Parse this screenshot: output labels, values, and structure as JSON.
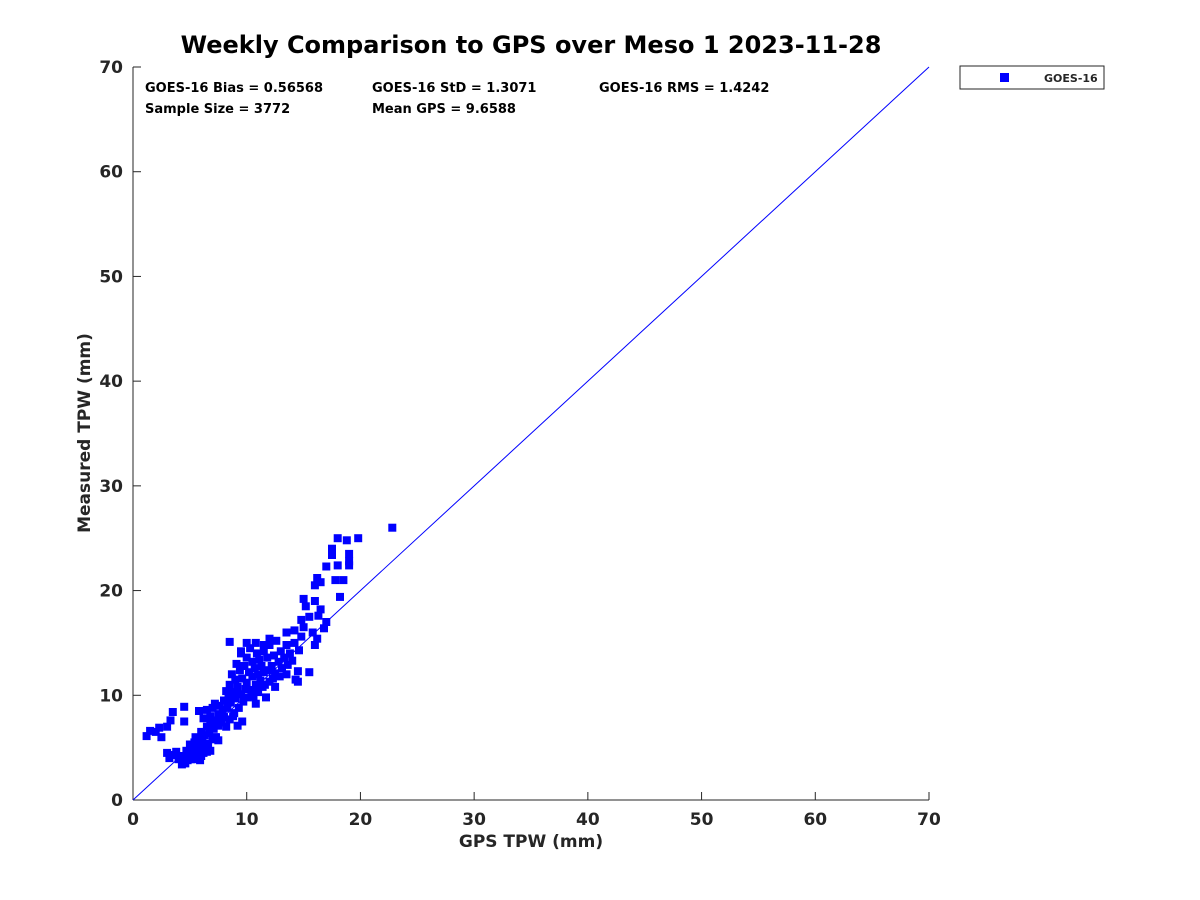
{
  "chart_data": {
    "type": "scatter",
    "title": "Weekly Comparison to GPS over Meso 1 2023-11-28",
    "xlabel": "GPS TPW (mm)",
    "ylabel": "Measured TPW (mm)",
    "xlim": [
      0,
      70
    ],
    "ylim": [
      0,
      70
    ],
    "xticks": [
      "0",
      "10",
      "20",
      "30",
      "40",
      "50",
      "60",
      "70"
    ],
    "yticks": [
      "0",
      "10",
      "20",
      "30",
      "40",
      "50",
      "60",
      "70"
    ],
    "grid": false,
    "legend_position": "outside-top-right",
    "one_to_one_line": {
      "x": [
        0,
        70
      ],
      "y": [
        0,
        70
      ],
      "color": "#0000ff"
    },
    "stats": {
      "bias": "GOES-16 Bias = 0.56568",
      "std": "GOES-16 StD = 1.3071",
      "rms": "GOES-16 RMS = 1.4242",
      "sample": "Sample Size = 3772",
      "mean": "Mean GPS = 9.6588"
    },
    "series": [
      {
        "name": "GOES-16",
        "color": "#0000ff",
        "marker": "square",
        "points": [
          [
            1.2,
            6.1
          ],
          [
            1.5,
            6.6
          ],
          [
            2.0,
            6.5
          ],
          [
            2.3,
            6.9
          ],
          [
            2.5,
            6.0
          ],
          [
            3.0,
            7.0
          ],
          [
            3.3,
            7.6
          ],
          [
            3.5,
            8.4
          ],
          [
            4.5,
            8.9
          ],
          [
            4.5,
            7.5
          ],
          [
            3.0,
            4.5
          ],
          [
            3.2,
            4.0
          ],
          [
            3.5,
            4.3
          ],
          [
            3.8,
            4.6
          ],
          [
            4.0,
            3.9
          ],
          [
            4.2,
            4.2
          ],
          [
            4.3,
            3.4
          ],
          [
            4.5,
            4.0
          ],
          [
            4.6,
            3.5
          ],
          [
            4.7,
            4.7
          ],
          [
            4.8,
            3.8
          ],
          [
            4.9,
            4.3
          ],
          [
            5.0,
            4.5
          ],
          [
            5.0,
            5.3
          ],
          [
            5.1,
            3.9
          ],
          [
            5.2,
            4.8
          ],
          [
            5.3,
            4.1
          ],
          [
            5.4,
            5.5
          ],
          [
            5.5,
            3.9
          ],
          [
            5.5,
            6.0
          ],
          [
            5.6,
            4.6
          ],
          [
            5.7,
            5.0
          ],
          [
            5.8,
            5.8
          ],
          [
            5.9,
            3.8
          ],
          [
            6.0,
            4.2
          ],
          [
            6.0,
            5.1
          ],
          [
            6.0,
            6.5
          ],
          [
            6.1,
            5.6
          ],
          [
            6.2,
            4.5
          ],
          [
            6.3,
            6.2
          ],
          [
            6.4,
            5.0
          ],
          [
            6.5,
            4.6
          ],
          [
            6.5,
            7.0
          ],
          [
            6.6,
            5.4
          ],
          [
            6.7,
            6.4
          ],
          [
            6.8,
            4.7
          ],
          [
            7.0,
            5.8
          ],
          [
            7.1,
            6.8
          ],
          [
            7.2,
            7.4
          ],
          [
            7.3,
            6.0
          ],
          [
            7.5,
            7.1
          ],
          [
            5.8,
            8.5
          ],
          [
            6.2,
            7.8
          ],
          [
            6.5,
            8.6
          ],
          [
            6.8,
            8.0
          ],
          [
            7.0,
            8.8
          ],
          [
            7.2,
            9.2
          ],
          [
            7.4,
            7.6
          ],
          [
            7.5,
            8.2
          ],
          [
            7.6,
            9.0
          ],
          [
            7.8,
            7.4
          ],
          [
            7.9,
            8.6
          ],
          [
            8.0,
            9.5
          ],
          [
            8.0,
            7.9
          ],
          [
            8.2,
            10.4
          ],
          [
            8.3,
            8.8
          ],
          [
            8.4,
            9.9
          ],
          [
            8.5,
            7.7
          ],
          [
            8.5,
            11.0
          ],
          [
            8.6,
            9.3
          ],
          [
            8.7,
            12.0
          ],
          [
            8.8,
            10.3
          ],
          [
            8.9,
            8.3
          ],
          [
            9.0,
            11.5
          ],
          [
            9.0,
            9.7
          ],
          [
            9.1,
            13.0
          ],
          [
            9.2,
            10.8
          ],
          [
            9.3,
            8.8
          ],
          [
            9.4,
            12.4
          ],
          [
            9.5,
            10.1
          ],
          [
            9.5,
            14.0
          ],
          [
            9.6,
            11.6
          ],
          [
            9.7,
            9.4
          ],
          [
            9.8,
            12.8
          ],
          [
            9.9,
            10.6
          ],
          [
            10.0,
            13.6
          ],
          [
            10.0,
            11.2
          ],
          [
            10.1,
            9.8
          ],
          [
            10.2,
            12.2
          ],
          [
            10.3,
            14.5
          ],
          [
            10.4,
            10.5
          ],
          [
            10.5,
            11.8
          ],
          [
            10.5,
            13.2
          ],
          [
            10.6,
            9.9
          ],
          [
            10.7,
            12.6
          ],
          [
            10.8,
            11.0
          ],
          [
            10.9,
            14.0
          ],
          [
            11.0,
            12.0
          ],
          [
            11.0,
            10.3
          ],
          [
            11.1,
            13.4
          ],
          [
            11.2,
            11.4
          ],
          [
            11.3,
            12.8
          ],
          [
            11.4,
            10.8
          ],
          [
            11.5,
            14.2
          ],
          [
            11.5,
            12.2
          ],
          [
            11.6,
            11.0
          ],
          [
            11.8,
            13.6
          ],
          [
            11.9,
            12.4
          ],
          [
            12.0,
            11.3
          ],
          [
            12.0,
            14.8
          ],
          [
            12.2,
            12.8
          ],
          [
            12.3,
            11.6
          ],
          [
            12.4,
            13.8
          ],
          [
            12.5,
            12.1
          ],
          [
            12.6,
            15.2
          ],
          [
            12.8,
            13.2
          ],
          [
            12.9,
            11.8
          ],
          [
            13.0,
            14.2
          ],
          [
            13.1,
            12.6
          ],
          [
            13.3,
            13.6
          ],
          [
            13.5,
            14.8
          ],
          [
            13.6,
            12.9
          ],
          [
            13.8,
            14.0
          ],
          [
            14.0,
            13.3
          ],
          [
            14.2,
            15.0
          ],
          [
            14.3,
            11.5
          ],
          [
            14.5,
            12.3
          ],
          [
            14.6,
            14.3
          ],
          [
            14.8,
            15.6
          ],
          [
            15.0,
            16.5
          ],
          [
            14.2,
            16.2
          ],
          [
            14.8,
            17.2
          ],
          [
            15.2,
            18.5
          ],
          [
            15.5,
            17.5
          ],
          [
            15.8,
            16.0
          ],
          [
            16.0,
            19.0
          ],
          [
            16.2,
            15.4
          ],
          [
            16.3,
            17.6
          ],
          [
            16.5,
            18.2
          ],
          [
            16.8,
            16.4
          ],
          [
            17.0,
            17.0
          ],
          [
            15.0,
            19.2
          ],
          [
            16.0,
            20.5
          ],
          [
            16.2,
            21.2
          ],
          [
            16.5,
            20.8
          ],
          [
            17.0,
            22.3
          ],
          [
            17.5,
            24.0
          ],
          [
            17.5,
            23.4
          ],
          [
            17.8,
            21.0
          ],
          [
            18.0,
            25.0
          ],
          [
            18.0,
            22.4
          ],
          [
            18.2,
            19.4
          ],
          [
            18.5,
            21.0
          ],
          [
            18.8,
            24.8
          ],
          [
            19.0,
            22.4
          ],
          [
            19.0,
            22.8
          ],
          [
            19.0,
            23.5
          ],
          [
            19.8,
            25.0
          ],
          [
            22.8,
            26.0
          ],
          [
            10.0,
            15.0
          ],
          [
            8.5,
            15.1
          ],
          [
            9.5,
            14.2
          ],
          [
            12.0,
            15.4
          ],
          [
            13.5,
            16.0
          ],
          [
            11.5,
            14.8
          ],
          [
            10.8,
            15.0
          ],
          [
            7.2,
            6.0
          ],
          [
            7.5,
            5.7
          ],
          [
            6.8,
            7.5
          ],
          [
            8.2,
            7.0
          ],
          [
            8.8,
            8.0
          ],
          [
            9.6,
            7.5
          ],
          [
            9.2,
            7.1
          ],
          [
            10.8,
            9.2
          ],
          [
            11.7,
            9.8
          ],
          [
            12.5,
            10.8
          ],
          [
            13.5,
            12.0
          ],
          [
            14.5,
            11.3
          ],
          [
            15.5,
            12.2
          ],
          [
            16.0,
            14.8
          ]
        ]
      }
    ]
  }
}
